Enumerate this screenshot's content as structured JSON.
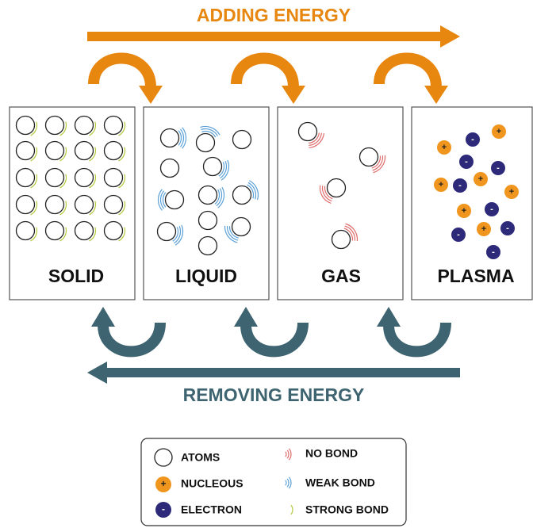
{
  "header": {
    "top_label": "ADDING ENERGY",
    "bottom_label": "REMOVING ENERGY"
  },
  "panels": [
    {
      "label": "SOLID"
    },
    {
      "label": "LIQUID"
    },
    {
      "label": "GAS"
    },
    {
      "label": "PLASMA"
    }
  ],
  "symbols": {
    "nucleus": "+",
    "electron": "-"
  },
  "legend": {
    "items": [
      {
        "label": "ATOMS"
      },
      {
        "label": "NUCLEOUS"
      },
      {
        "label": "ELECTRON"
      },
      {
        "label": "NO BOND"
      },
      {
        "label": "WEAK BOND"
      },
      {
        "label": "STRONG BOND"
      }
    ]
  }
}
